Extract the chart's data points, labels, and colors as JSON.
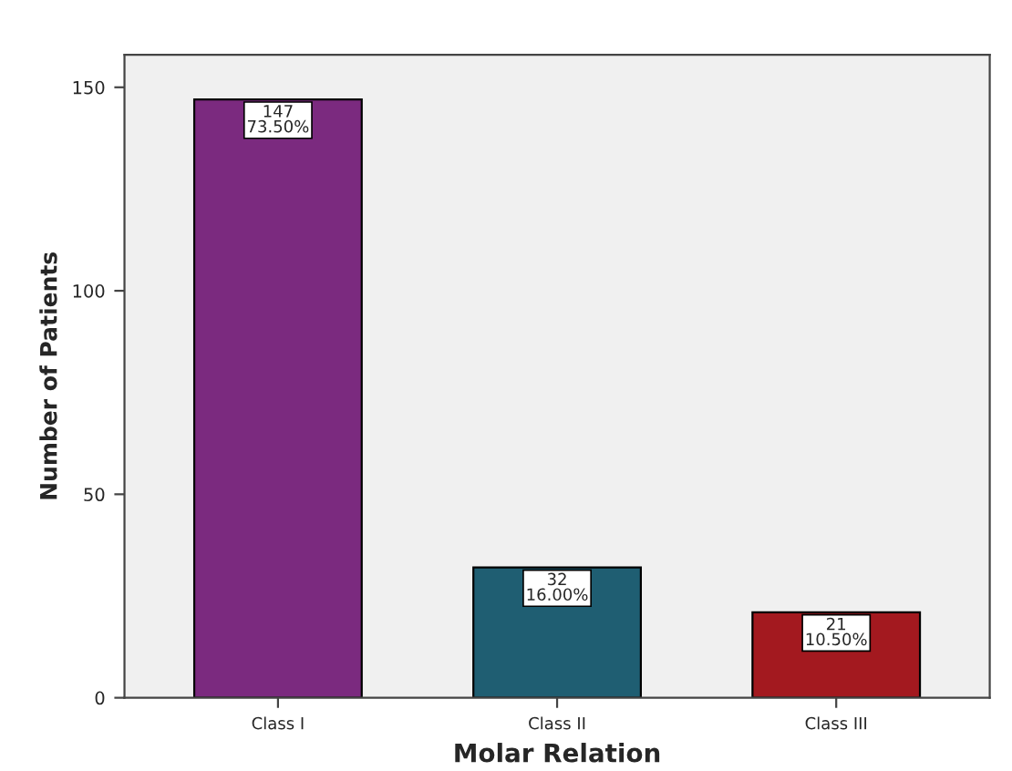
{
  "chart_data": {
    "type": "bar",
    "xlabel": "Molar Relation",
    "ylabel": "Number of Patients",
    "categories": [
      "Class I",
      "Class II",
      "Class III"
    ],
    "values": [
      147,
      32,
      21
    ],
    "colors": [
      "#7b2a7f",
      "#1f5e72",
      "#a3191f"
    ],
    "value_labels": [
      "147\n73.50%",
      "32\n16.00%",
      "21\n10.50%"
    ],
    "ylim": [
      0,
      158
    ],
    "yticks": [
      0,
      50,
      100,
      150
    ],
    "grid": false,
    "legend": false
  }
}
